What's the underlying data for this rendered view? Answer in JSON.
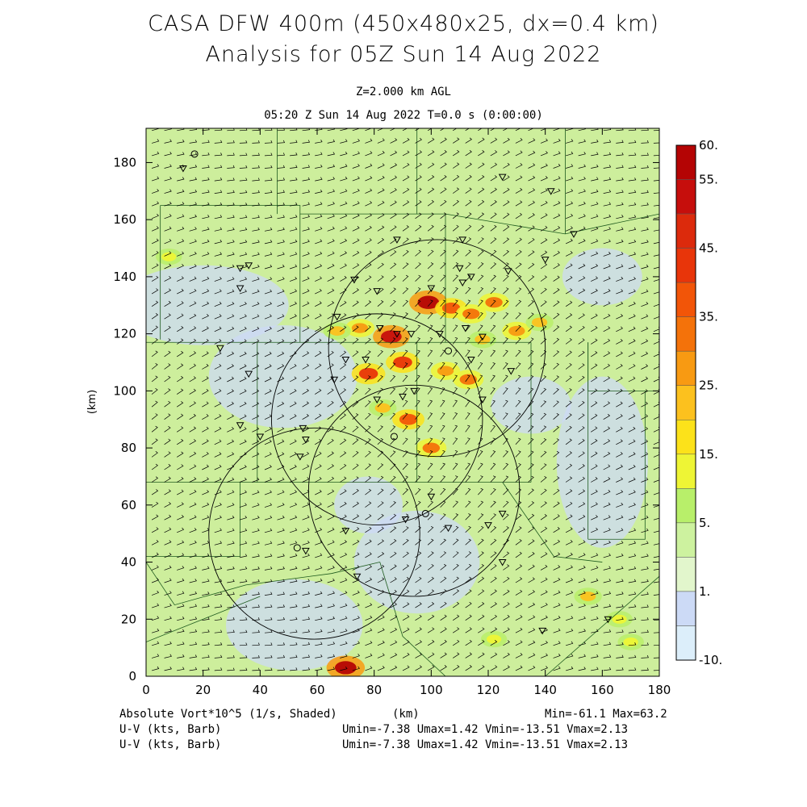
{
  "header": {
    "title_line1": "CASA DFW 400m (450x480x25, dx=0.4 km)",
    "title_line2": "Analysis for 05Z Sun 14 Aug 2022",
    "level_label": "Z=2.000 km AGL",
    "time_label": "05:20 Z Sun 14 Aug 2022    T=0.0 s (0:00:00)"
  },
  "footer": {
    "field_label": "Absolute Vort*10^5 (1/s, Shaded)",
    "xunit_label": "(km)",
    "minmax": "Min=-61.1 Max=63.2",
    "vector_label_1": "U-V (kts, Barb)",
    "vector_label_2": "U-V (kts, Barb)",
    "vector_stats_1": "Umin=-7.38 Umax=1.42 Vmin=-13.51 Vmax=2.13",
    "vector_stats_2": "Umin=-7.38 Umax=1.42 Vmin=-13.51 Vmax=2.13"
  },
  "colors": {
    "bin_colors": [
      "#e6f6fc",
      "#dceefa",
      "#ccdaf6",
      "#e2f6cc",
      "#cdf29f",
      "#b8ef6a",
      "#eef535",
      "#fce21a",
      "#fcc11e",
      "#f89a12",
      "#f4720a",
      "#f25508",
      "#e8350a",
      "#dc2a0c",
      "#c60e0c",
      "#b40404"
    ],
    "background_field": "#cdee9c",
    "boundary_lines": "#1e5a1e"
  },
  "chart_data": {
    "type": "heatmap",
    "xlabel": "(km)",
    "ylabel": "(km)",
    "xlim": [
      0,
      180
    ],
    "ylim": [
      0,
      192
    ],
    "xticks": [
      "0",
      "20",
      "40",
      "60",
      "80",
      "100",
      "120",
      "140",
      "160",
      "180"
    ],
    "yticks": [
      "0",
      "20",
      "40",
      "60",
      "80",
      "100",
      "120",
      "140",
      "160",
      "180"
    ],
    "colorbar": {
      "tick_labels": [
        "60.",
        "55.",
        "45.",
        "35.",
        "25.",
        "15.",
        "5.",
        "1.",
        "-10."
      ],
      "tick_values": [
        60,
        55,
        45,
        35,
        25,
        15,
        5,
        1,
        -10
      ],
      "range": [
        -10,
        60
      ],
      "bin_count": 15
    },
    "radar_rings": [
      {
        "center": [
          102,
          115
        ],
        "radius": 38
      },
      {
        "center": [
          81,
          90
        ],
        "radius": 37
      },
      {
        "center": [
          94,
          65
        ],
        "radius": 37
      },
      {
        "center": [
          59,
          50
        ],
        "radius": 37
      }
    ],
    "stations": [
      [
        13,
        178
      ],
      [
        33,
        143
      ],
      [
        36,
        144
      ],
      [
        33,
        136
      ],
      [
        125,
        175
      ],
      [
        142,
        170
      ],
      [
        150,
        155
      ],
      [
        88,
        153
      ],
      [
        111,
        153
      ],
      [
        127,
        142
      ],
      [
        140,
        146
      ],
      [
        73,
        139
      ],
      [
        81,
        135
      ],
      [
        110,
        143
      ],
      [
        67,
        126
      ],
      [
        82,
        122
      ],
      [
        88,
        120
      ],
      [
        93,
        120
      ],
      [
        103,
        120
      ],
      [
        112,
        122
      ],
      [
        118,
        119
      ],
      [
        70,
        111
      ],
      [
        77,
        111
      ],
      [
        114,
        111
      ],
      [
        128,
        107
      ],
      [
        26,
        115
      ],
      [
        36,
        106
      ],
      [
        66,
        104
      ],
      [
        81,
        97
      ],
      [
        90,
        98
      ],
      [
        94,
        100
      ],
      [
        118,
        97
      ],
      [
        33,
        88
      ],
      [
        55,
        87
      ],
      [
        56,
        83
      ],
      [
        40,
        84
      ],
      [
        54,
        77
      ],
      [
        100,
        63
      ],
      [
        125,
        57
      ],
      [
        91,
        55
      ],
      [
        106,
        52
      ],
      [
        120,
        53
      ],
      [
        70,
        51
      ],
      [
        56,
        44
      ],
      [
        125,
        40
      ],
      [
        74,
        35
      ],
      [
        162,
        20
      ],
      [
        139,
        16
      ],
      [
        114,
        140
      ],
      [
        111,
        138
      ],
      [
        100,
        136
      ]
    ],
    "circle_markers": [
      [
        17,
        183
      ],
      [
        87,
        84
      ],
      [
        53,
        45
      ],
      [
        98,
        57
      ],
      [
        106,
        114
      ]
    ],
    "vorticity_cells": [
      {
        "x": 99,
        "y": 131,
        "value": 60
      },
      {
        "x": 86,
        "y": 119,
        "value": 55
      },
      {
        "x": 78,
        "y": 106,
        "value": 45
      },
      {
        "x": 70,
        "y": 3,
        "value": 60
      },
      {
        "x": 107,
        "y": 129,
        "value": 40
      },
      {
        "x": 114,
        "y": 127,
        "value": 35
      },
      {
        "x": 122,
        "y": 131,
        "value": 35
      },
      {
        "x": 130,
        "y": 121,
        "value": 30
      },
      {
        "x": 105,
        "y": 107,
        "value": 30
      },
      {
        "x": 113,
        "y": 104,
        "value": 35
      },
      {
        "x": 92,
        "y": 90,
        "value": 40
      },
      {
        "x": 100,
        "y": 80,
        "value": 35
      },
      {
        "x": 83,
        "y": 94,
        "value": 25
      },
      {
        "x": 75,
        "y": 122,
        "value": 30
      },
      {
        "x": 90,
        "y": 110,
        "value": 45
      },
      {
        "x": 67,
        "y": 121,
        "value": 25
      },
      {
        "x": 118,
        "y": 118,
        "value": 25
      },
      {
        "x": 8,
        "y": 147,
        "value": 20
      },
      {
        "x": 155,
        "y": 28,
        "value": 25
      },
      {
        "x": 166,
        "y": 20,
        "value": 20
      },
      {
        "x": 170,
        "y": 12,
        "value": 20
      },
      {
        "x": 122,
        "y": 13,
        "value": 20
      },
      {
        "x": 138,
        "y": 124,
        "value": 25
      }
    ],
    "wind_field": "southwesterly to westerly barbs, weak speeds"
  }
}
